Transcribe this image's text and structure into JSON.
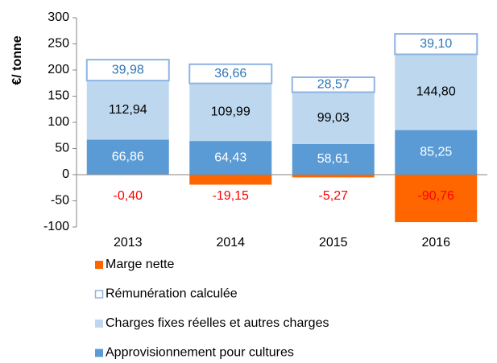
{
  "chart_data": {
    "type": "stacked_bar",
    "y_label": "€/ tonne",
    "categories": [
      "2013",
      "2014",
      "2015",
      "2016"
    ],
    "series": [
      {
        "name": "Approvisionnement pour cultures",
        "color": "#5b9bd5",
        "label_color": "#ffffff",
        "values": [
          66.86,
          64.43,
          58.61,
          85.25
        ],
        "value_labels": [
          "66,86",
          "64,43",
          "58,61",
          "85,25"
        ]
      },
      {
        "name": "Charges fixes réelles et autres charges",
        "color": "#bdd7ee",
        "label_color": "#000000",
        "values": [
          112.94,
          109.99,
          99.03,
          144.8
        ],
        "value_labels": [
          "112,94",
          "109,99",
          "99,03",
          "144,80"
        ]
      },
      {
        "name": "Rémunération calculée",
        "color": "#ffffff",
        "border": "#8eb4e3",
        "label_color": "#2e75b6",
        "values": [
          39.98,
          36.66,
          28.57,
          39.1
        ],
        "value_labels": [
          "39,98",
          "36,66",
          "28,57",
          "39,10"
        ]
      },
      {
        "name": "Marge nette",
        "color": "#ff6600",
        "label_color": "#ff0000",
        "values": [
          -0.4,
          -19.15,
          -5.27,
          -90.76
        ],
        "value_labels": [
          "-0,40",
          "-19,15",
          "-5,27",
          "-90,76"
        ]
      }
    ],
    "ylim": [
      -100,
      300
    ],
    "yticks": [
      -100,
      -50,
      0,
      50,
      100,
      150,
      200,
      250,
      300
    ],
    "grid": false,
    "legend": "bottom"
  }
}
